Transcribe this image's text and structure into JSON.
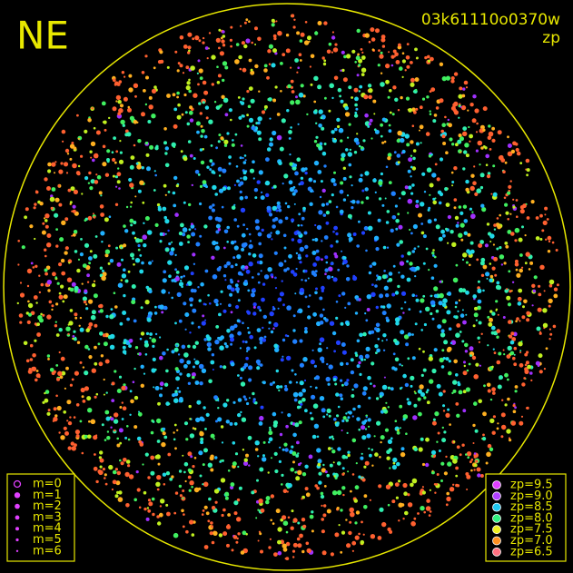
{
  "header": {
    "corner": "NE",
    "frame": "03k61110o0370w",
    "quantity": "zp"
  },
  "legend_size": {
    "items": [
      "m=0",
      "m=1",
      "m=2",
      "m=3",
      "m=4",
      "m=5",
      "m=6"
    ]
  },
  "legend_color": {
    "items": [
      {
        "label": "zp=9.5",
        "color": "#e040ff"
      },
      {
        "label": "zp=9.0",
        "color": "#b040ff"
      },
      {
        "label": "zp=8.5",
        "color": "#20c8f0"
      },
      {
        "label": "zp=8.0",
        "color": "#30f080"
      },
      {
        "label": "zp=7.5",
        "color": "#f0f020"
      },
      {
        "label": "zp=7.0",
        "color": "#ff9020"
      },
      {
        "label": "zp=6.5",
        "color": "#ff7080"
      }
    ]
  }
}
